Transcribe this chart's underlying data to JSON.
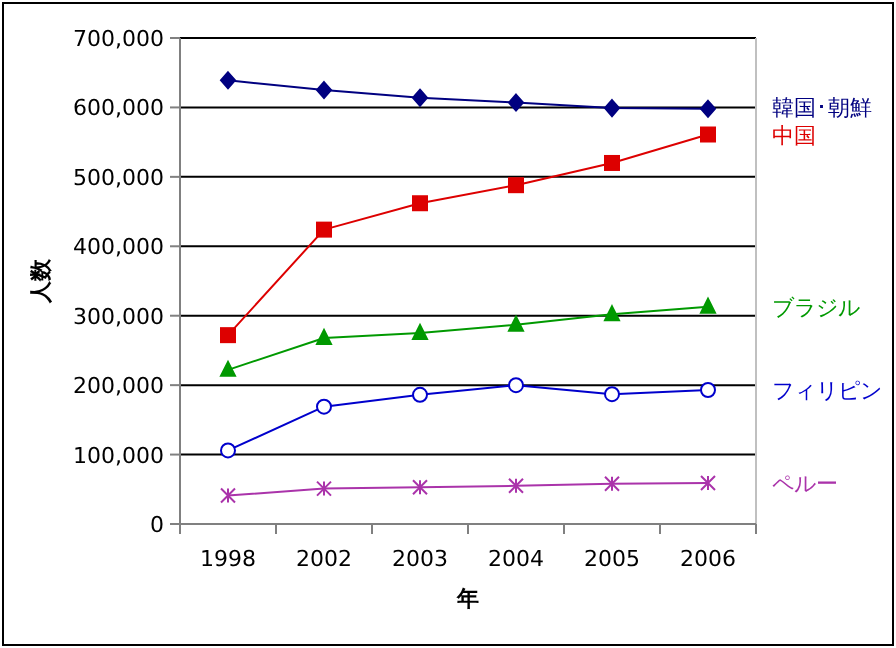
{
  "chart_data": {
    "type": "line",
    "xlabel": "年",
    "ylabel": "人数",
    "categories": [
      "1998",
      "2002",
      "2003",
      "2004",
      "2005",
      "2006"
    ],
    "series": [
      {
        "name": "韓国･朝鮮",
        "color": "#000080",
        "marker": "diamond",
        "values": [
          639000,
          625000,
          614000,
          607000,
          599000,
          598000
        ]
      },
      {
        "name": "中国",
        "color": "#dd0000",
        "marker": "square",
        "values": [
          272000,
          424000,
          462000,
          488000,
          520000,
          561000
        ]
      },
      {
        "name": "ブラジル",
        "color": "#009900",
        "marker": "triangle",
        "values": [
          222000,
          268000,
          275000,
          287000,
          302000,
          313000
        ]
      },
      {
        "name": "フィリピン",
        "color": "#0000cc",
        "marker": "circle",
        "values": [
          106000,
          169000,
          186000,
          200000,
          187000,
          193000
        ]
      },
      {
        "name": "ペルー",
        "color": "#aa33aa",
        "marker": "cross",
        "values": [
          41000,
          51000,
          53000,
          55000,
          58000,
          59000
        ]
      }
    ],
    "ylim": [
      0,
      700000
    ],
    "yticks": [
      {
        "value": 0,
        "label": "0"
      },
      {
        "value": 100000,
        "label": "100,000"
      },
      {
        "value": 200000,
        "label": "200,000"
      },
      {
        "value": 300000,
        "label": "300,000"
      },
      {
        "value": 400000,
        "label": "400,000"
      },
      {
        "value": 500000,
        "label": "500,000"
      },
      {
        "value": 600000,
        "label": "600,000"
      },
      {
        "value": 700000,
        "label": "700,000"
      }
    ],
    "grid": "y"
  }
}
